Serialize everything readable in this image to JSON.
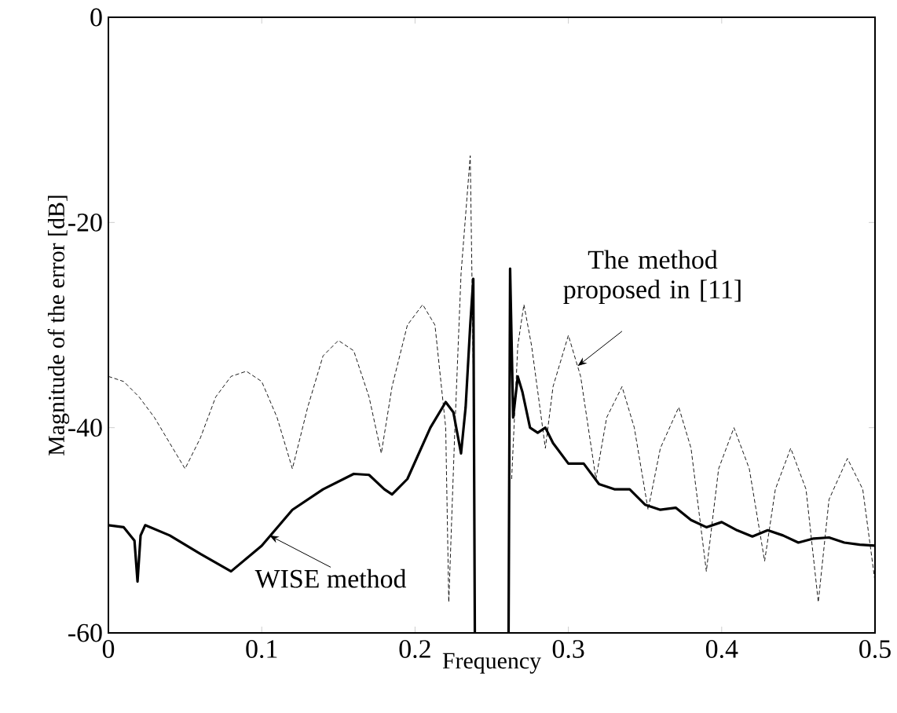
{
  "chart_data": {
    "type": "line",
    "xlabel": "Frequency",
    "ylabel": "Magnitude of the error [dB]",
    "xlim": [
      0,
      0.5
    ],
    "ylim": [
      -60,
      0
    ],
    "xticks": [
      0,
      0.1,
      0.2,
      0.3,
      0.4,
      0.5
    ],
    "yticks": [
      -60,
      -40,
      -20,
      0
    ],
    "series": [
      {
        "color": "#000000",
        "line_style": "solid",
        "x": [
          0,
          0.01,
          0.017,
          0.019,
          0.021,
          0.024,
          0.04,
          0.06,
          0.08,
          0.1,
          0.12,
          0.14,
          0.16,
          0.17,
          0.18,
          0.185,
          0.195,
          0.21,
          0.22,
          0.225,
          0.23,
          0.233,
          0.236,
          0.238,
          0.239,
          0.25,
          0.261,
          0.262,
          0.264,
          0.267,
          0.27,
          0.275,
          0.28,
          0.285,
          0.29,
          0.3,
          0.31,
          0.32,
          0.33,
          0.34,
          0.35,
          0.36,
          0.37,
          0.38,
          0.39,
          0.4,
          0.41,
          0.42,
          0.43,
          0.44,
          0.45,
          0.46,
          0.47,
          0.48,
          0.49,
          0.5
        ],
        "values": [
          -49.5,
          -49.7,
          -51,
          -55,
          -50.5,
          -49.5,
          -50.5,
          -52.3,
          -54,
          -51.5,
          -48,
          -46,
          -44.5,
          -44.6,
          -46,
          -46.5,
          -45,
          -40,
          -37.5,
          -38.5,
          -42.5,
          -38,
          -30,
          -25.5,
          -60,
          null,
          -60,
          -24.5,
          -39,
          -35,
          -36.5,
          -40,
          -40.5,
          -40,
          -41.5,
          -43.5,
          -43.5,
          -45.5,
          -46,
          -46,
          -47.5,
          -48,
          -47.8,
          -49,
          -49.7,
          -49.2,
          -50,
          -50.6,
          -50,
          -50.5,
          -51.2,
          -50.8,
          -50.7,
          -51.2,
          -51.4,
          -51.5
        ]
      },
      {
        "color": "#000000",
        "line_style": "dashed",
        "x": [
          0,
          0.01,
          0.02,
          0.03,
          0.04,
          0.05,
          0.06,
          0.07,
          0.08,
          0.09,
          0.1,
          0.11,
          0.12,
          0.13,
          0.14,
          0.15,
          0.16,
          0.17,
          0.178,
          0.185,
          0.195,
          0.205,
          0.213,
          0.22,
          0.222,
          0.226,
          0.23,
          0.236,
          0.239,
          0.25,
          0.263,
          0.267,
          0.271,
          0.276,
          0.285,
          0.29,
          0.3,
          0.308,
          0.318,
          0.325,
          0.335,
          0.343,
          0.352,
          0.36,
          0.372,
          0.38,
          0.39,
          0.398,
          0.408,
          0.418,
          0.428,
          0.435,
          0.445,
          0.455,
          0.463,
          0.47,
          0.482,
          0.492,
          0.5
        ],
        "values": [
          -35,
          -35.5,
          -37,
          -39,
          -41.5,
          -44,
          -41,
          -37,
          -35,
          -34.5,
          -35.5,
          -39,
          -44,
          -38,
          -33,
          -31.5,
          -32.5,
          -37,
          -42.5,
          -36,
          -30,
          -28,
          -30,
          -40,
          -57,
          -40,
          -25,
          -13.5,
          -45,
          null,
          -45,
          -32,
          -28,
          -32,
          -42,
          -36,
          -31,
          -35,
          -45,
          -39,
          -36,
          -40,
          -48,
          -42,
          -38,
          -42,
          -54,
          -44,
          -40,
          -44,
          -53,
          -46,
          -42,
          -46,
          -57,
          -47,
          -43,
          -46,
          -55
        ]
      }
    ],
    "annotations": [
      {
        "text": "WISE method",
        "x": 0.105,
        "y": -50.5
      },
      {
        "text": "The method proposed in [11]",
        "x": 0.306,
        "y": -34
      }
    ]
  }
}
